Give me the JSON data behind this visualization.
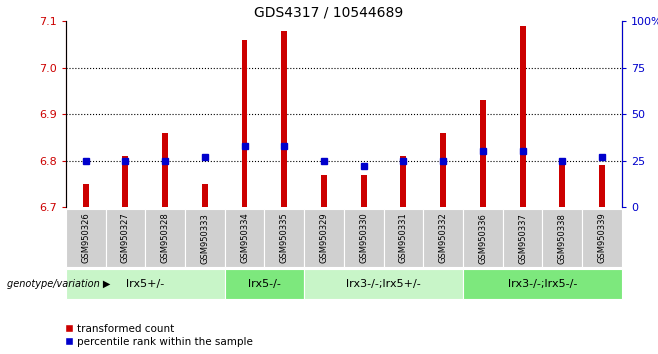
{
  "title": "GDS4317 / 10544689",
  "samples": [
    "GSM950326",
    "GSM950327",
    "GSM950328",
    "GSM950333",
    "GSM950334",
    "GSM950335",
    "GSM950329",
    "GSM950330",
    "GSM950331",
    "GSM950332",
    "GSM950336",
    "GSM950337",
    "GSM950338",
    "GSM950339"
  ],
  "transformed_count": [
    6.75,
    6.81,
    6.86,
    6.75,
    7.06,
    7.08,
    6.77,
    6.77,
    6.81,
    6.86,
    6.93,
    7.09,
    6.8,
    6.79
  ],
  "percentile_rank": [
    25,
    25,
    25,
    27,
    33,
    33,
    25,
    22,
    25,
    25,
    30,
    30,
    25,
    27
  ],
  "ylim_left": [
    6.7,
    7.1
  ],
  "ylim_right": [
    0,
    100
  ],
  "yticks_left": [
    6.7,
    6.8,
    6.9,
    7.0,
    7.1
  ],
  "yticks_right": [
    0,
    25,
    50,
    75,
    100
  ],
  "ytick_labels_right": [
    "0",
    "25",
    "50",
    "75",
    "100%"
  ],
  "bar_color": "#cc0000",
  "dot_color": "#0000cc",
  "bar_bottom": 6.7,
  "groups": [
    {
      "label": "lrx5+/-",
      "start": 0,
      "end": 4,
      "color": "#c8f5c8"
    },
    {
      "label": "lrx5-/-",
      "start": 4,
      "end": 6,
      "color": "#7de87d"
    },
    {
      "label": "lrx3-/-;lrx5+/-",
      "start": 6,
      "end": 10,
      "color": "#c8f5c8"
    },
    {
      "label": "lrx3-/-;lrx5-/-",
      "start": 10,
      "end": 14,
      "color": "#7de87d"
    }
  ],
  "group_row_label": "genotype/variation",
  "bar_width": 0.15,
  "grid_color": "black",
  "title_fontsize": 10,
  "tick_fontsize": 8,
  "sample_fontsize": 6,
  "group_fontsize": 8
}
